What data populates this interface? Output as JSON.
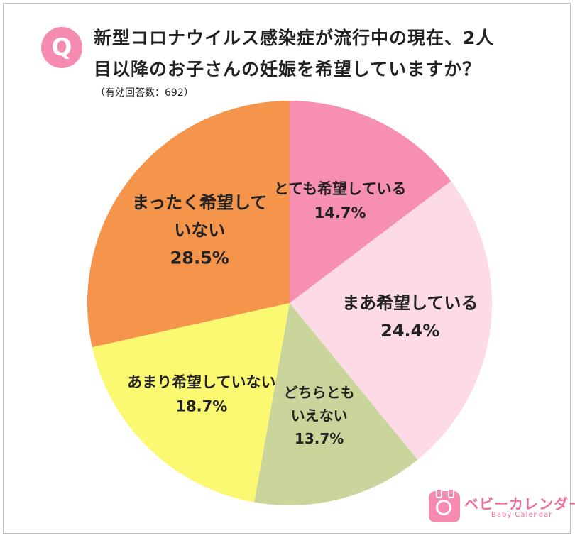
{
  "question": {
    "badge": "Q",
    "line1": "新型コロナウイルス感染症が流行中の現在、2人",
    "line2": "目以降のお子さんの妊娠を希望していますか？",
    "note": "（有効回答数：692）"
  },
  "chart_data": {
    "type": "pie",
    "title": "新型コロナウイルス感染症が流行中の現在、2人目以降のお子さんの妊娠を希望していますか？",
    "subtitle": "（有効回答数：692）",
    "start_angle_deg": 0,
    "direction": "clockwise",
    "slices": [
      {
        "label_lines": [
          "とても希望している"
        ],
        "value": 14.7,
        "value_text": "14.7%",
        "color": "#f78fb3"
      },
      {
        "label_lines": [
          "まあ希望している"
        ],
        "value": 24.4,
        "value_text": "24.4%",
        "color": "#fcdbe7"
      },
      {
        "label_lines": [
          "どちらとも",
          "いえない"
        ],
        "value": 13.7,
        "value_text": "13.7%",
        "color": "#c9d59a"
      },
      {
        "label_lines": [
          "あまり希望していない"
        ],
        "value": 18.7,
        "value_text": "18.7%",
        "color": "#fbf871"
      },
      {
        "label_lines": [
          "まったく希望して",
          "いない"
        ],
        "value": 28.5,
        "value_text": "28.5%",
        "color": "#f5954b"
      }
    ]
  },
  "brand": {
    "name": "ベビーカレンダー",
    "sub": "Baby Calendar",
    "color": "#f06e9c"
  }
}
